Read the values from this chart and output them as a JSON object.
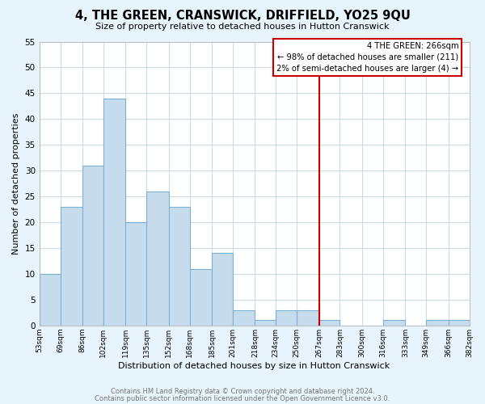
{
  "title": "4, THE GREEN, CRANSWICK, DRIFFIELD, YO25 9QU",
  "subtitle": "Size of property relative to detached houses in Hutton Cranswick",
  "xlabel": "Distribution of detached houses by size in Hutton Cranswick",
  "ylabel": "Number of detached properties",
  "bin_edges": [
    53,
    69,
    86,
    102,
    119,
    135,
    152,
    168,
    185,
    201,
    218,
    234,
    250,
    267,
    283,
    300,
    316,
    333,
    349,
    366,
    382
  ],
  "bar_heights": [
    10,
    23,
    31,
    44,
    20,
    26,
    23,
    11,
    14,
    3,
    1,
    3,
    3,
    1,
    0,
    0,
    1,
    0,
    1,
    1
  ],
  "bar_color": "#c6dcec",
  "bar_edge_color": "#7bafd4",
  "grid_color": "#c8dcea",
  "background_color": "#e8f4fc",
  "plot_bg_color": "#ffffff",
  "vline_x": 267,
  "vline_color": "#cc0000",
  "annotation_title": "4 THE GREEN: 266sqm",
  "annotation_line1": "← 98% of detached houses are smaller (211)",
  "annotation_line2": "2% of semi-detached houses are larger (4) →",
  "annotation_box_facecolor": "#ffffff",
  "annotation_box_edge": "#cc0000",
  "footnote1": "Contains HM Land Registry data © Crown copyright and database right 2024.",
  "footnote2": "Contains public sector information licensed under the Open Government Licence v3.0.",
  "ylim": [
    0,
    55
  ],
  "yticks": [
    0,
    5,
    10,
    15,
    20,
    25,
    30,
    35,
    40,
    45,
    50,
    55
  ],
  "tick_labels": [
    "53sqm",
    "69sqm",
    "86sqm",
    "102sqm",
    "119sqm",
    "135sqm",
    "152sqm",
    "168sqm",
    "185sqm",
    "201sqm",
    "218sqm",
    "234sqm",
    "250sqm",
    "267sqm",
    "283sqm",
    "300sqm",
    "316sqm",
    "333sqm",
    "349sqm",
    "366sqm",
    "382sqm"
  ]
}
